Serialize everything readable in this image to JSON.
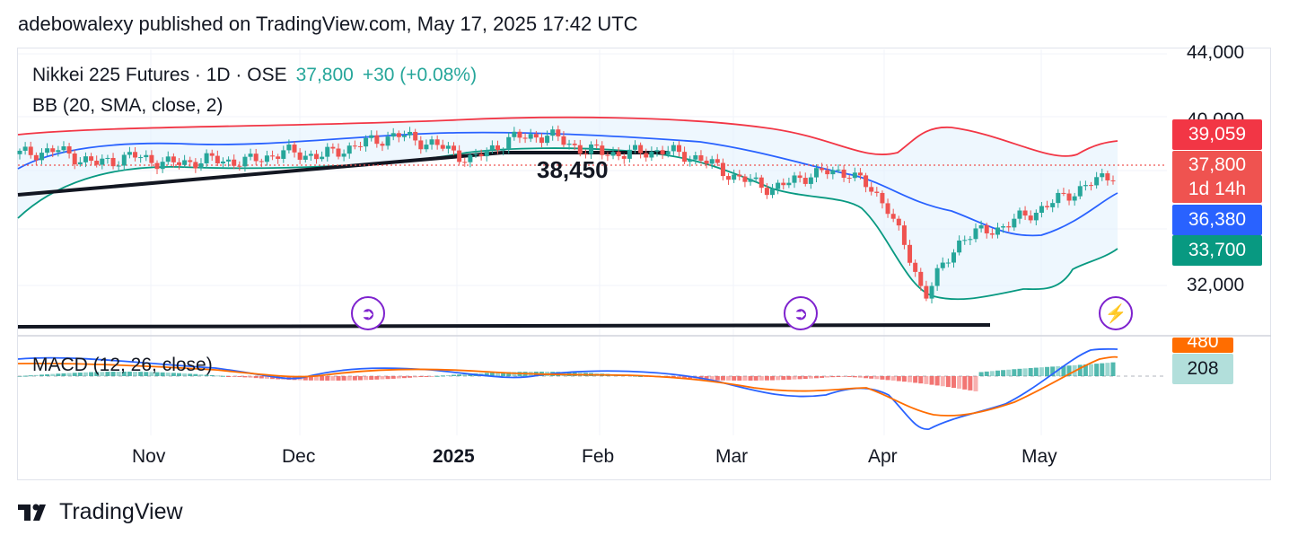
{
  "attribution": "adebowalexy published on TradingView.com, May 17, 2025 17:42 UTC",
  "legend": {
    "symbol": "Nikkei 225 Futures · 1D · OSE",
    "price": "37,800",
    "change": "+30 (+0.08%)",
    "bb": "BB (20, SMA, close, 2)",
    "macd": "MACD (12, 26, close)"
  },
  "annotation": "38,450",
  "price_axis": [
    "44,000",
    "40,000",
    "32,000"
  ],
  "time_axis": [
    "Nov",
    "Dec",
    "2025",
    "Feb",
    "Mar",
    "Apr",
    "May"
  ],
  "tags": {
    "bb_upper": "39,059",
    "last_price": "37,800",
    "countdown": "1d 14h",
    "bb_basis": "36,380",
    "bb_lower": "33,700",
    "macd_signal": "480",
    "macd_line": "208"
  },
  "colors": {
    "up": "#26a69a",
    "down": "#ef5350",
    "bb_upper": "#f23645",
    "bb_basis": "#2962ff",
    "bb_lower": "#089981",
    "macd_line": "#2962ff",
    "signal_line": "#ff6d00",
    "event_icon": "#7e22ce"
  },
  "icons": {
    "event_1": "dividend-arrow-icon",
    "event_2": "dividend-arrow-icon",
    "event_3": "earnings-lightning-icon"
  },
  "brand": "TradingView",
  "chart_data": {
    "type": "candlestick",
    "title": "Nikkei 225 Futures · 1D · OSE",
    "ylim": [
      30000,
      44000
    ],
    "yticks": [
      32000,
      40000,
      44000
    ],
    "x_categories": [
      "Nov",
      "Dec",
      "2025",
      "Feb",
      "Mar",
      "Apr",
      "May"
    ],
    "close_series": [
      {
        "date": "Oct-21",
        "close": 38800
      },
      {
        "date": "Oct-28",
        "close": 39000
      },
      {
        "date": "Nov-04",
        "close": 38300
      },
      {
        "date": "Nov-11",
        "close": 38700
      },
      {
        "date": "Nov-18",
        "close": 38300
      },
      {
        "date": "Nov-25",
        "close": 38500
      },
      {
        "date": "Dec-02",
        "close": 38400
      },
      {
        "date": "Dec-09",
        "close": 38900
      },
      {
        "date": "Dec-16",
        "close": 38700
      },
      {
        "date": "Dec-23",
        "close": 39300
      },
      {
        "date": "Dec-30",
        "close": 39800
      },
      {
        "date": "Jan-06",
        "close": 39300
      },
      {
        "date": "Jan-13",
        "close": 38500
      },
      {
        "date": "Jan-20",
        "close": 39600
      },
      {
        "date": "Jan-27",
        "close": 39800
      },
      {
        "date": "Feb-03",
        "close": 39000
      },
      {
        "date": "Feb-10",
        "close": 38800
      },
      {
        "date": "Feb-17",
        "close": 39000
      },
      {
        "date": "Feb-24",
        "close": 38600
      },
      {
        "date": "Mar-03",
        "close": 37600
      },
      {
        "date": "Mar-10",
        "close": 37000
      },
      {
        "date": "Mar-17",
        "close": 37800
      },
      {
        "date": "Mar-24",
        "close": 37900
      },
      {
        "date": "Mar-31",
        "close": 36200
      },
      {
        "date": "Apr-07",
        "close": 31500
      },
      {
        "date": "Apr-14",
        "close": 34500
      },
      {
        "date": "Apr-21",
        "close": 35000
      },
      {
        "date": "Apr-28",
        "close": 35900
      },
      {
        "date": "May-05",
        "close": 36900
      },
      {
        "date": "May-12",
        "close": 37800
      }
    ],
    "bollinger": {
      "upper": 39059,
      "basis": 36380,
      "lower": 33700
    },
    "support_level": 38450,
    "macd": {
      "macd": 208,
      "signal": 480
    }
  }
}
